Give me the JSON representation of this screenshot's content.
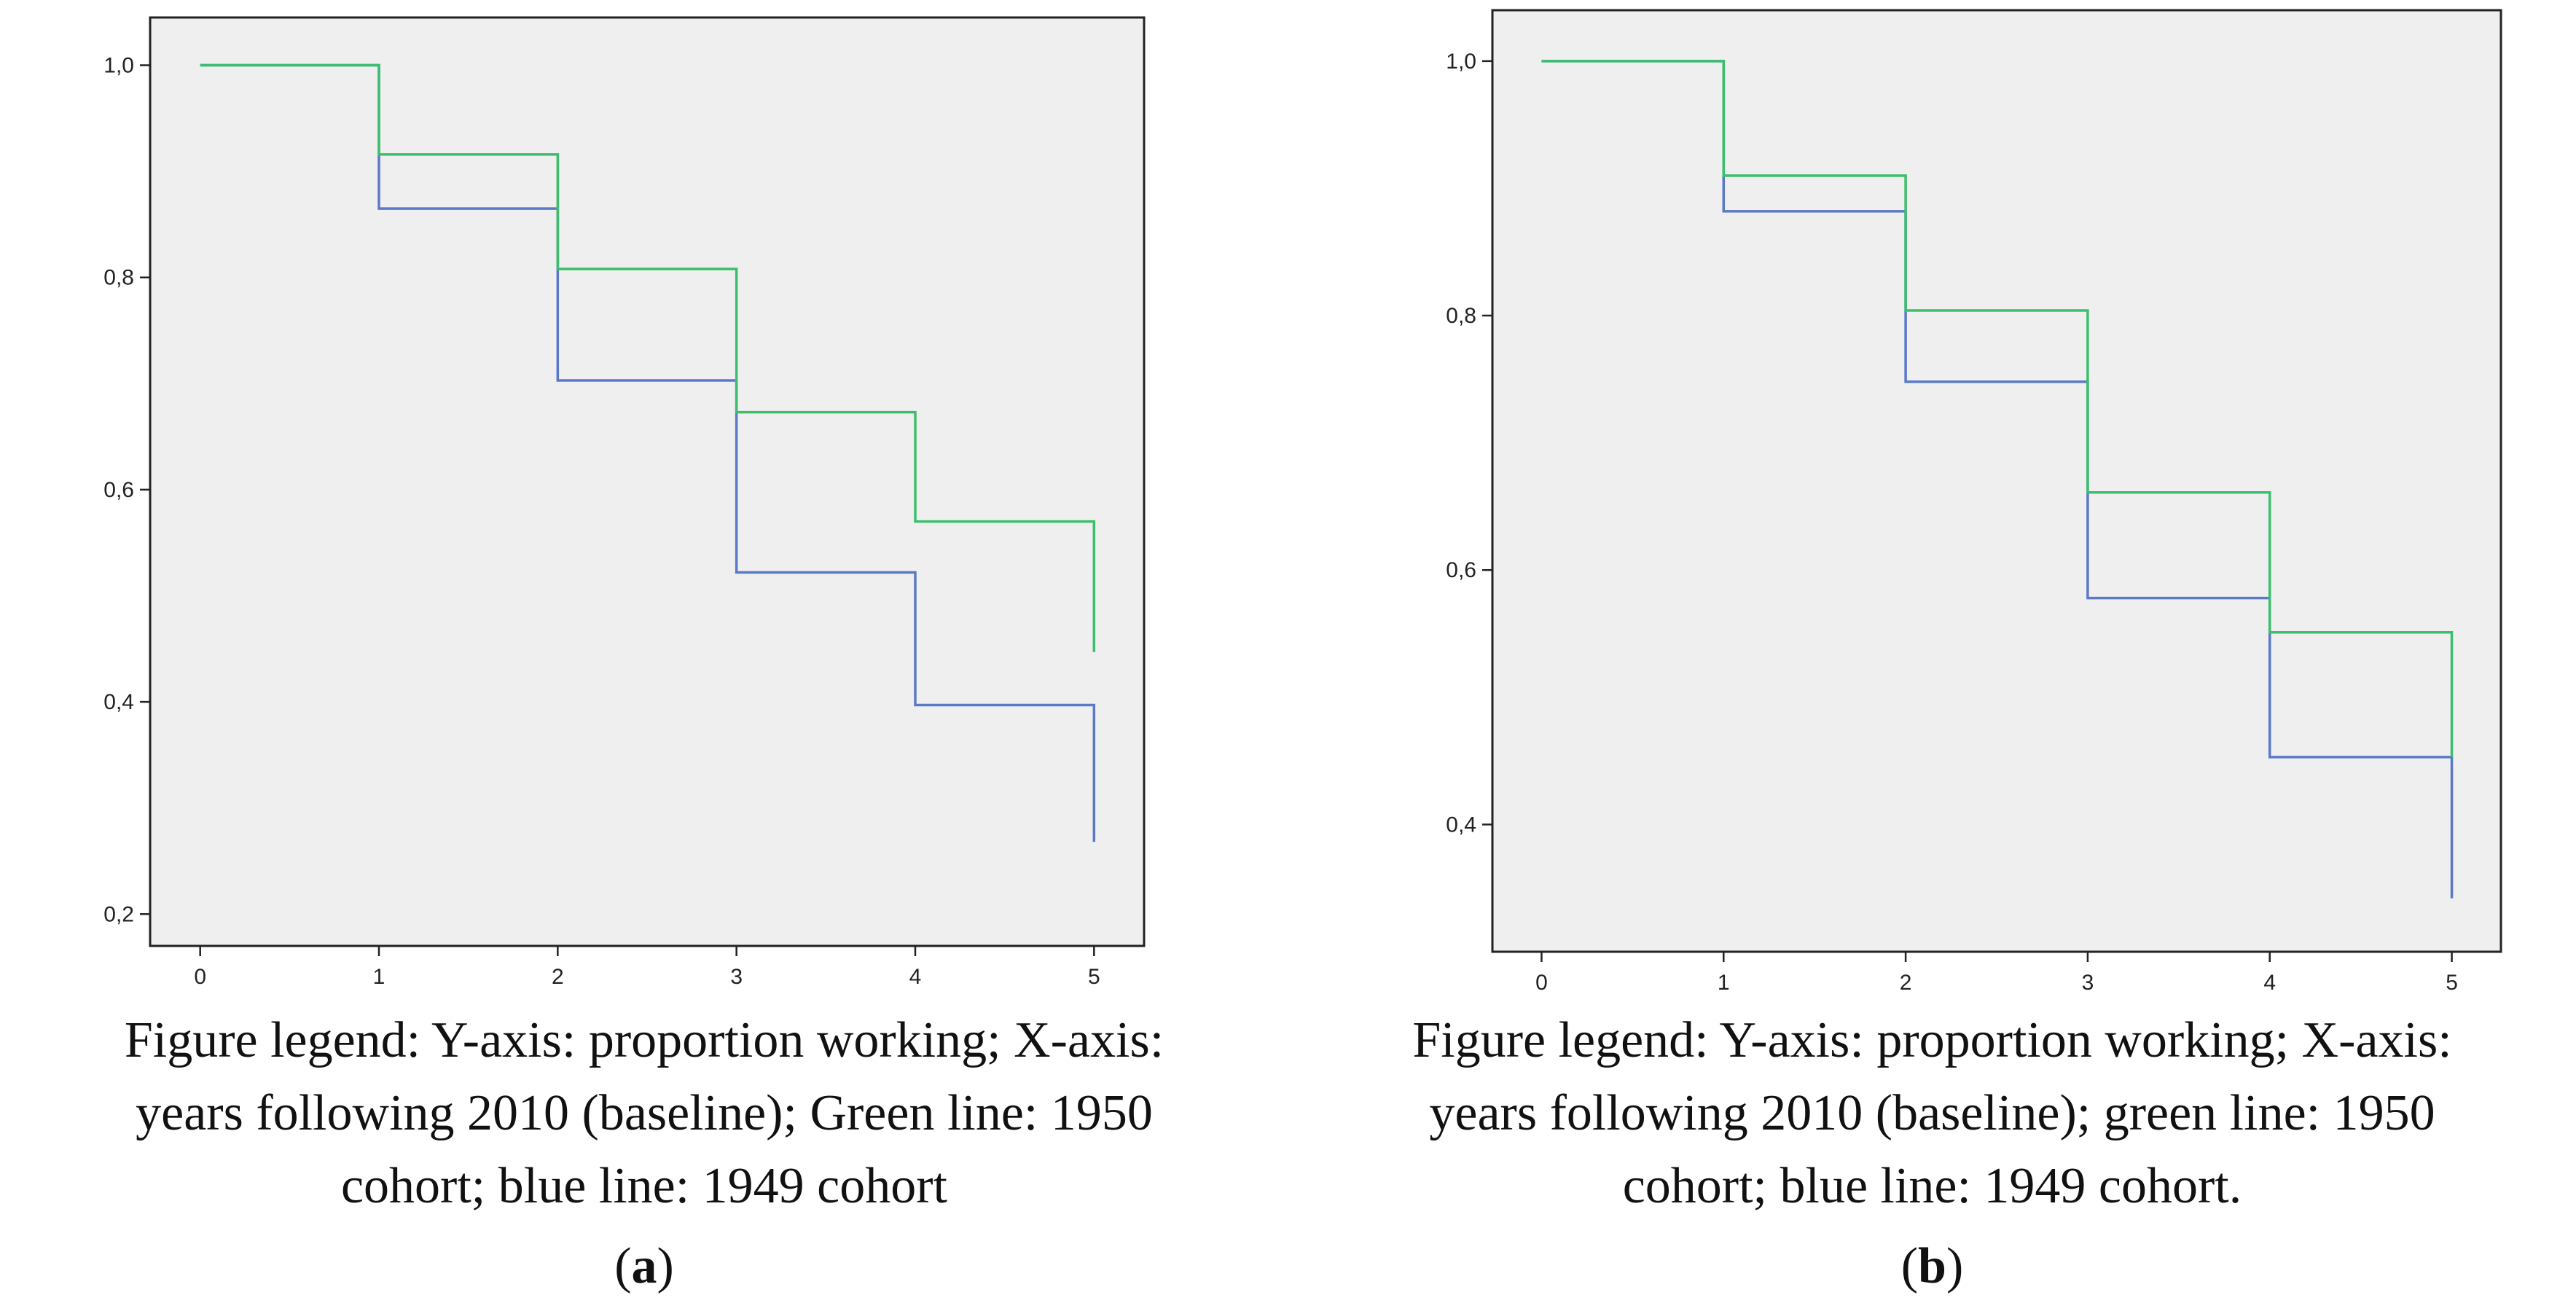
{
  "chart_data": [
    {
      "type": "line",
      "step": true,
      "x": [
        0,
        1,
        2,
        3,
        4,
        5
      ],
      "x_ticks": [
        "0",
        "1",
        "2",
        "3",
        "4",
        "5"
      ],
      "y_ticks": [
        "0,2",
        "0,4",
        "0,6",
        "0,8",
        "1,0"
      ],
      "y_tick_values": [
        0.2,
        0.4,
        0.6,
        0.8,
        1.0
      ],
      "xlim": [
        -0.28,
        5.28
      ],
      "ylim": [
        0.17,
        1.045
      ],
      "series": [
        {
          "color": "#5b79c9",
          "values": [
            1.0,
            0.865,
            0.703,
            0.522,
            0.397,
            0.268
          ]
        },
        {
          "color": "#3cbf6c",
          "values": [
            1.0,
            0.916,
            0.808,
            0.673,
            0.57,
            0.447
          ]
        }
      ],
      "grid": false,
      "background": "#efefef",
      "title": "",
      "xlabel": "",
      "ylabel": ""
    },
    {
      "type": "line",
      "step": true,
      "x": [
        0,
        1,
        2,
        3,
        4,
        5
      ],
      "x_ticks": [
        "0",
        "1",
        "2",
        "3",
        "4",
        "5"
      ],
      "y_ticks": [
        "0,4",
        "0,6",
        "0,8",
        "1,0"
      ],
      "y_tick_values": [
        0.4,
        0.6,
        0.8,
        1.0
      ],
      "xlim": [
        -0.27,
        5.27
      ],
      "ylim": [
        0.3,
        1.04
      ],
      "series": [
        {
          "color": "#5b79c9",
          "values": [
            1.0,
            0.882,
            0.748,
            0.578,
            0.453,
            0.342
          ]
        },
        {
          "color": "#3cbf6c",
          "values": [
            1.0,
            0.91,
            0.804,
            0.661,
            0.551,
            0.453
          ]
        }
      ],
      "grid": false,
      "background": "#efefef",
      "title": "",
      "xlabel": "",
      "ylabel": ""
    }
  ],
  "captions": [
    {
      "lines": [
        "Figure legend: Y-axis: proportion working; X-axis:",
        "years following 2010 (baseline); Green line: 1950",
        "cohort; blue line: 1949 cohort"
      ],
      "label_open": "(",
      "label_letter": "a",
      "label_close": ")"
    },
    {
      "lines": [
        "Figure legend: Y-axis: proportion working; X-axis:",
        "years following 2010 (baseline); green line: 1950",
        "cohort; blue line: 1949 cohort."
      ],
      "label_open": "(",
      "label_letter": "b",
      "label_close": ")"
    }
  ]
}
